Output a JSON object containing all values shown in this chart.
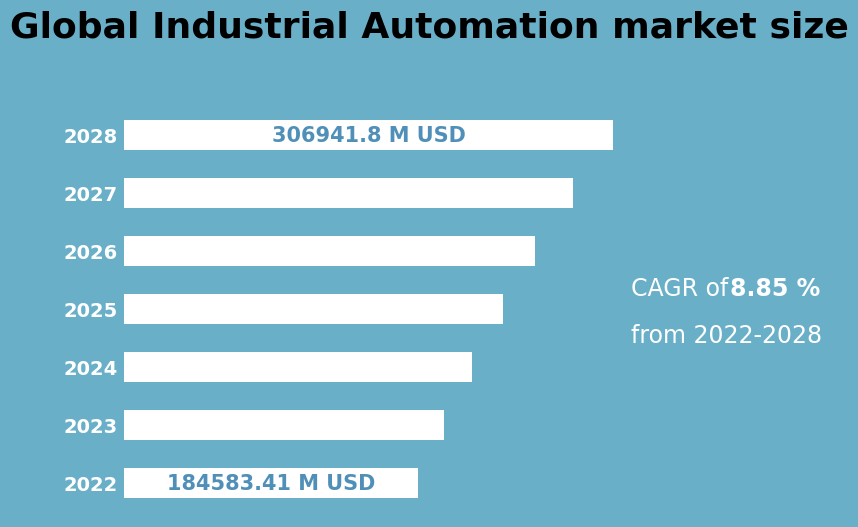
{
  "title": "Global Industrial Automation market size",
  "years": [
    2022,
    2023,
    2024,
    2025,
    2026,
    2027,
    2028
  ],
  "values": [
    184583.41,
    200925.0,
    218530.0,
    237530.0,
    258100.0,
    281900.0,
    306941.8
  ],
  "bar_color": "#ffffff",
  "background_color": "#6AAFC8",
  "label_2022": "184583.41 M USD",
  "label_2028": "306941.8 M USD",
  "label_color": "#5090b8",
  "cagr_normal": "CAGR of ",
  "cagr_bold": "8.85 %",
  "cagr_text_2": "from 2022-2028",
  "title_fontsize": 26,
  "tick_fontsize": 14,
  "annotation_fontsize": 15,
  "cagr_fontsize": 17,
  "xlim_max": 420000
}
